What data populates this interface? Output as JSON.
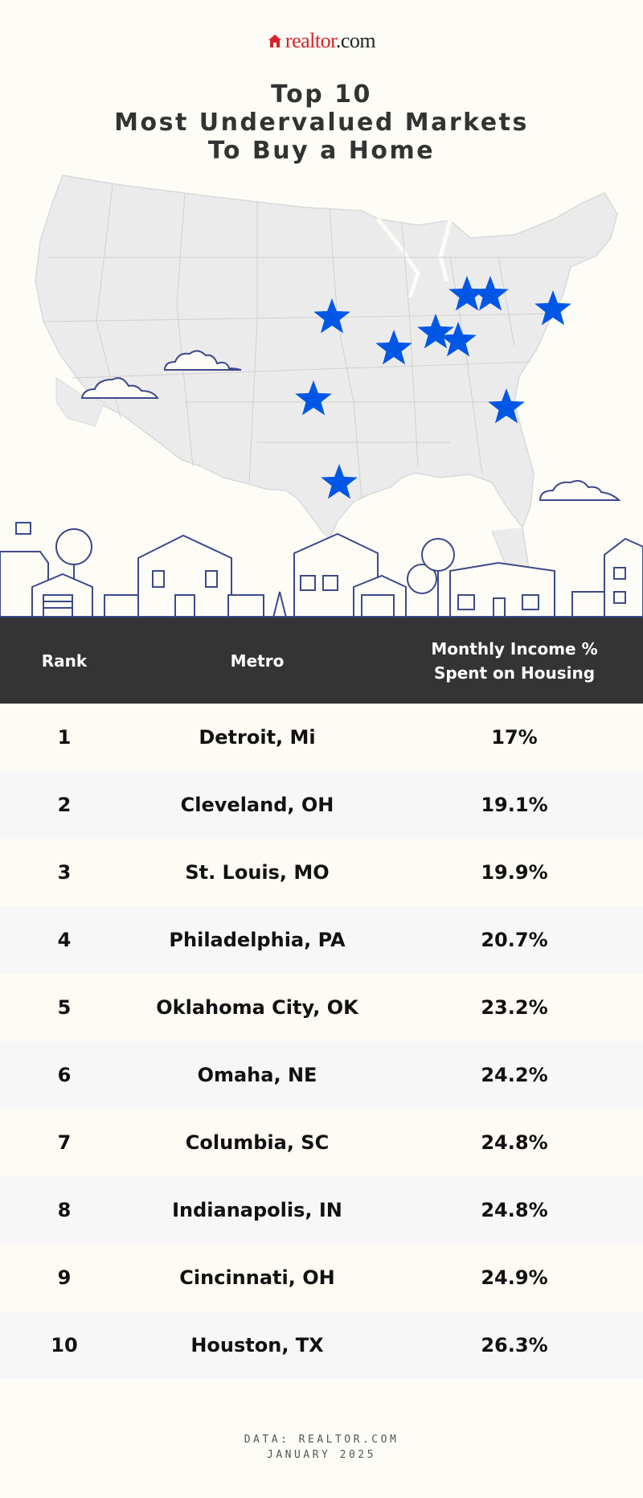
{
  "logo": {
    "brand_main": "realtor",
    "brand_suffix": ".com"
  },
  "title": {
    "line1": "Top 10",
    "line2": "Most Undervalued Markets",
    "line3": "To Buy a Home"
  },
  "colors": {
    "star": "#0057e6",
    "header_bg": "#343434",
    "page_bg": "#fdfcf6",
    "logo_red": "#d92228"
  },
  "icons": {
    "map_marker": "star-icon",
    "logo_mark": "house-icon"
  },
  "table": {
    "headers": {
      "rank": "Rank",
      "metro": "Metro",
      "share_line1": "Monthly Income %",
      "share_line2": "Spent on Housing"
    }
  },
  "chart_data": {
    "type": "table",
    "title": "Top 10 Most Undervalued Markets To Buy a Home",
    "columns": [
      "Rank",
      "Metro",
      "Monthly Income % Spent on Housing"
    ],
    "rows": [
      {
        "rank": "1",
        "metro": "Detroit, Mi",
        "share": "17%"
      },
      {
        "rank": "2",
        "metro": "Cleveland, OH",
        "share": "19.1%"
      },
      {
        "rank": "3",
        "metro": "St. Louis, MO",
        "share": "19.9%"
      },
      {
        "rank": "4",
        "metro": "Philadelphia, PA",
        "share": "20.7%"
      },
      {
        "rank": "5",
        "metro": "Oklahoma City, OK",
        "share": "23.2%"
      },
      {
        "rank": "6",
        "metro": "Omaha, NE",
        "share": "24.2%"
      },
      {
        "rank": "7",
        "metro": "Columbia, SC",
        "share": "24.8%"
      },
      {
        "rank": "8",
        "metro": "Indianapolis, IN",
        "share": "24.8%"
      },
      {
        "rank": "9",
        "metro": "Cincinnati, OH",
        "share": "24.9%"
      },
      {
        "rank": "10",
        "metro": "Houston, TX",
        "share": "26.3%"
      }
    ]
  },
  "source": {
    "line1": "DATA: REALTOR.COM",
    "line2": "JANUARY 2025"
  }
}
